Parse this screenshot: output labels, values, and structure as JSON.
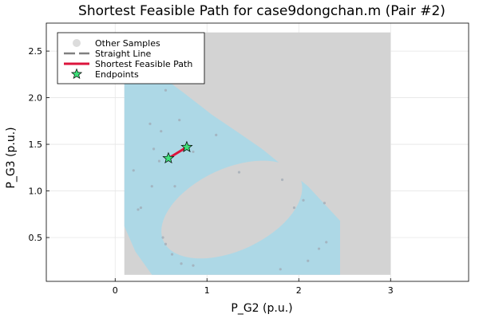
{
  "chart_data": {
    "type": "scatter",
    "title": "Shortest Feasible Path for case9dongchan.m (Pair #2)",
    "xlabel": "P_G2 (p.u.)",
    "ylabel": "P_G3 (p.u.)",
    "xlim": [
      -0.75,
      3.85
    ],
    "ylim": [
      0.03,
      2.8
    ],
    "xticks": [
      0,
      1,
      2,
      3
    ],
    "yticks": [
      0.5,
      1.0,
      1.5,
      2.0,
      2.5
    ],
    "xtick_labels": [
      "0",
      "1",
      "2",
      "3"
    ],
    "ytick_labels": [
      "0.5",
      "1.0",
      "1.5",
      "2.0",
      "2.5"
    ],
    "grid": true,
    "legend_position": "top-left",
    "colors": {
      "infeasible_region": "#d3d3d3",
      "feasible_region": "#add8e6",
      "samples": "#a0aab4",
      "straight_line": "#808080",
      "shortest_path": "#dc143c",
      "endpoints": "#3ee07a"
    },
    "regions": {
      "sample_bounds": {
        "x": [
          0.1,
          3.0
        ],
        "y": [
          0.1,
          2.7
        ]
      },
      "feasible_band": [
        [
          0.1,
          0.62
        ],
        [
          0.1,
          2.35
        ],
        [
          0.45,
          2.27
        ],
        [
          0.75,
          2.05
        ],
        [
          1.05,
          1.82
        ],
        [
          1.35,
          1.62
        ],
        [
          1.6,
          1.45
        ],
        [
          1.85,
          1.25
        ],
        [
          2.1,
          1.05
        ],
        [
          2.45,
          0.68
        ],
        [
          2.45,
          0.1
        ],
        [
          0.4,
          0.1
        ],
        [
          0.22,
          0.35
        ]
      ],
      "infeasible_ellipse": {
        "center": [
          1.27,
          0.8
        ],
        "rx": 0.82,
        "ry": 0.44,
        "angle_deg": -25
      }
    },
    "series": [
      {
        "name": "Other Samples",
        "type": "scatter",
        "x": [
          0.55,
          0.2,
          0.25,
          0.38,
          0.42,
          0.5,
          0.65,
          0.7,
          0.85,
          1.1,
          1.35,
          0.48,
          0.4,
          0.28,
          0.52,
          0.55,
          0.62,
          0.72,
          0.85,
          1.82,
          1.95,
          2.05,
          2.28,
          2.3,
          2.22,
          2.1,
          1.8
        ],
        "y": [
          2.08,
          1.22,
          0.8,
          1.72,
          1.45,
          1.64,
          1.05,
          1.76,
          1.42,
          1.6,
          1.2,
          1.32,
          1.05,
          0.82,
          0.5,
          0.43,
          0.32,
          0.22,
          0.2,
          1.12,
          0.82,
          0.9,
          0.87,
          0.45,
          0.38,
          0.25,
          0.16
        ]
      },
      {
        "name": "Straight Line",
        "type": "line",
        "x": [
          0.58,
          0.78
        ],
        "y": [
          1.35,
          1.47
        ]
      },
      {
        "name": "Shortest Feasible Path",
        "type": "line",
        "x": [
          0.58,
          0.78
        ],
        "y": [
          1.35,
          1.47
        ]
      },
      {
        "name": "Endpoints",
        "type": "scatter",
        "x": [
          0.58,
          0.78
        ],
        "y": [
          1.35,
          1.47
        ]
      }
    ]
  }
}
